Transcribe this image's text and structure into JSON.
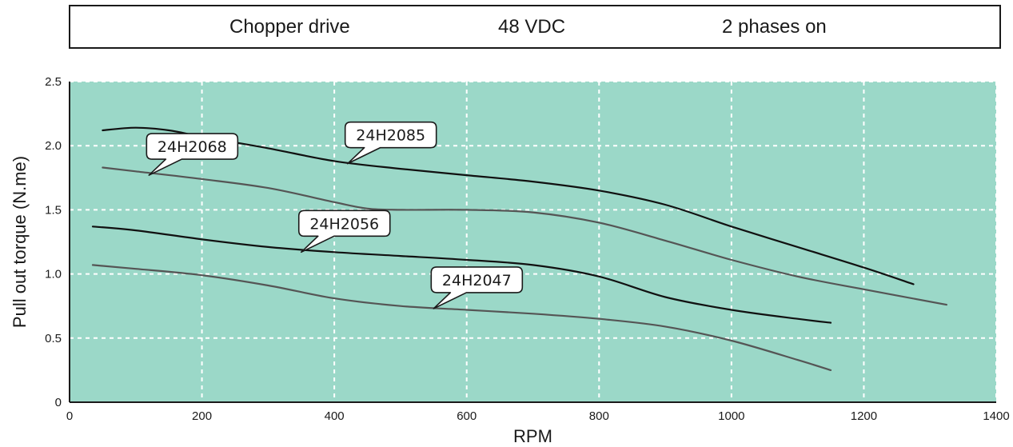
{
  "header": {
    "items": [
      "Chopper drive",
      "48 VDC",
      "2 phases on"
    ]
  },
  "colors": {
    "plot_background": "#9bd8c8",
    "grid": "#ffffff",
    "dark_curve": "#111111",
    "gray_curve": "#555555"
  },
  "chart_data": {
    "type": "line",
    "title": "",
    "xlabel": "RPM",
    "ylabel": "Pull out torque (N.me)",
    "xlim": [
      0,
      1400
    ],
    "ylim": [
      0,
      2.5
    ],
    "x_ticks": [
      0,
      200,
      400,
      600,
      800,
      1000,
      1200,
      1400
    ],
    "y_ticks": [
      0,
      0.5,
      1.0,
      1.5,
      2.0,
      2.5
    ],
    "x_tick_labels": [
      "0",
      "200",
      "400",
      "600",
      "800",
      "1000",
      "1200",
      "1400"
    ],
    "y_tick_labels": [
      "0",
      "0.5",
      "1.0",
      "1.5",
      "2.0",
      "2.5"
    ],
    "grid": true,
    "series": [
      {
        "name": "24H2085",
        "color": "#111111",
        "label_at": [
          420,
          1.86
        ],
        "x": [
          50,
          100,
          150,
          200,
          300,
          400,
          500,
          600,
          700,
          800,
          900,
          1000,
          1100,
          1200,
          1275
        ],
        "y": [
          2.12,
          2.14,
          2.12,
          2.07,
          1.98,
          1.88,
          1.82,
          1.77,
          1.72,
          1.65,
          1.54,
          1.37,
          1.21,
          1.05,
          0.92
        ]
      },
      {
        "name": "24H2068",
        "color": "#555555",
        "label_at": [
          120,
          1.77
        ],
        "x": [
          50,
          100,
          200,
          300,
          400,
          450,
          500,
          600,
          700,
          800,
          900,
          1000,
          1100,
          1200,
          1325
        ],
        "y": [
          1.83,
          1.8,
          1.74,
          1.67,
          1.56,
          1.51,
          1.5,
          1.5,
          1.48,
          1.4,
          1.26,
          1.11,
          0.98,
          0.88,
          0.76
        ]
      },
      {
        "name": "24H2056",
        "color": "#111111",
        "label_at": [
          350,
          1.17
        ],
        "x": [
          35,
          100,
          200,
          300,
          400,
          500,
          600,
          700,
          800,
          900,
          1000,
          1100,
          1150
        ],
        "y": [
          1.37,
          1.34,
          1.27,
          1.21,
          1.17,
          1.14,
          1.11,
          1.07,
          0.98,
          0.82,
          0.72,
          0.65,
          0.62
        ]
      },
      {
        "name": "24H2047",
        "color": "#555555",
        "label_at": [
          550,
          0.73
        ],
        "x": [
          35,
          100,
          200,
          300,
          400,
          500,
          600,
          700,
          800,
          900,
          1000,
          1100,
          1150
        ],
        "y": [
          1.07,
          1.04,
          0.99,
          0.91,
          0.81,
          0.75,
          0.72,
          0.69,
          0.65,
          0.59,
          0.48,
          0.33,
          0.25
        ]
      }
    ]
  }
}
